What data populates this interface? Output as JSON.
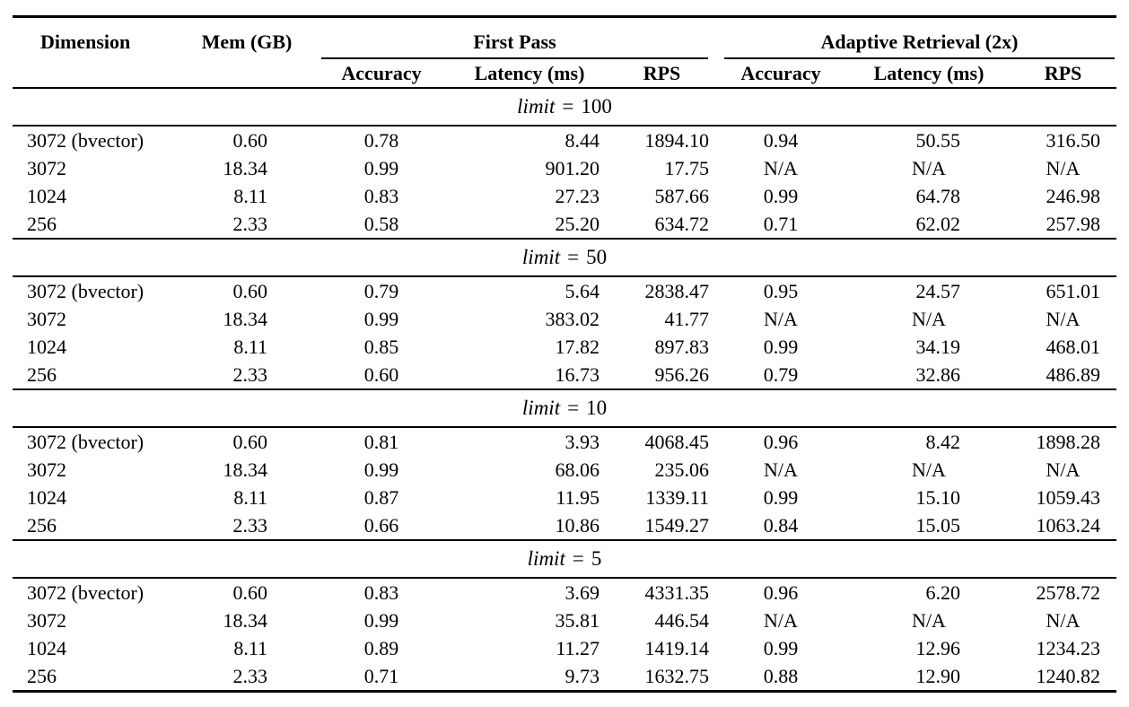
{
  "page": {
    "background_color": "#ffffff",
    "text_color": "#000000",
    "rule_color": "#000000"
  },
  "table": {
    "headers": {
      "dimension": "Dimension",
      "mem": "Mem (GB)",
      "group_first_pass": "First Pass",
      "group_adaptive": "Adaptive Retrieval (2x)",
      "accuracy": "Accuracy",
      "latency": "Latency (ms)",
      "rps": "RPS"
    },
    "limit_eq": "=",
    "sections": [
      {
        "limit_var": "limit",
        "limit_value": "100",
        "rows": [
          {
            "dimension": "3072 (bvector)",
            "mem": "0.60",
            "fp_accuracy": "0.78",
            "fp_latency": "8.44",
            "fp_rps": "1894.10",
            "ar_accuracy": "0.94",
            "ar_latency": "50.55",
            "ar_rps": "316.50"
          },
          {
            "dimension": "3072",
            "mem": "18.34",
            "fp_accuracy": "0.99",
            "fp_latency": "901.20",
            "fp_rps": "17.75",
            "ar_accuracy": "N/A",
            "ar_latency": "N/A",
            "ar_rps": "N/A"
          },
          {
            "dimension": "1024",
            "mem": "8.11",
            "fp_accuracy": "0.83",
            "fp_latency": "27.23",
            "fp_rps": "587.66",
            "ar_accuracy": "0.99",
            "ar_latency": "64.78",
            "ar_rps": "246.98"
          },
          {
            "dimension": "256",
            "mem": "2.33",
            "fp_accuracy": "0.58",
            "fp_latency": "25.20",
            "fp_rps": "634.72",
            "ar_accuracy": "0.71",
            "ar_latency": "62.02",
            "ar_rps": "257.98"
          }
        ]
      },
      {
        "limit_var": "limit",
        "limit_value": "50",
        "rows": [
          {
            "dimension": "3072 (bvector)",
            "mem": "0.60",
            "fp_accuracy": "0.79",
            "fp_latency": "5.64",
            "fp_rps": "2838.47",
            "ar_accuracy": "0.95",
            "ar_latency": "24.57",
            "ar_rps": "651.01"
          },
          {
            "dimension": "3072",
            "mem": "18.34",
            "fp_accuracy": "0.99",
            "fp_latency": "383.02",
            "fp_rps": "41.77",
            "ar_accuracy": "N/A",
            "ar_latency": "N/A",
            "ar_rps": "N/A"
          },
          {
            "dimension": "1024",
            "mem": "8.11",
            "fp_accuracy": "0.85",
            "fp_latency": "17.82",
            "fp_rps": "897.83",
            "ar_accuracy": "0.99",
            "ar_latency": "34.19",
            "ar_rps": "468.01"
          },
          {
            "dimension": "256",
            "mem": "2.33",
            "fp_accuracy": "0.60",
            "fp_latency": "16.73",
            "fp_rps": "956.26",
            "ar_accuracy": "0.79",
            "ar_latency": "32.86",
            "ar_rps": "486.89"
          }
        ]
      },
      {
        "limit_var": "limit",
        "limit_value": "10",
        "rows": [
          {
            "dimension": "3072 (bvector)",
            "mem": "0.60",
            "fp_accuracy": "0.81",
            "fp_latency": "3.93",
            "fp_rps": "4068.45",
            "ar_accuracy": "0.96",
            "ar_latency": "8.42",
            "ar_rps": "1898.28"
          },
          {
            "dimension": "3072",
            "mem": "18.34",
            "fp_accuracy": "0.99",
            "fp_latency": "68.06",
            "fp_rps": "235.06",
            "ar_accuracy": "N/A",
            "ar_latency": "N/A",
            "ar_rps": "N/A"
          },
          {
            "dimension": "1024",
            "mem": "8.11",
            "fp_accuracy": "0.87",
            "fp_latency": "11.95",
            "fp_rps": "1339.11",
            "ar_accuracy": "0.99",
            "ar_latency": "15.10",
            "ar_rps": "1059.43"
          },
          {
            "dimension": "256",
            "mem": "2.33",
            "fp_accuracy": "0.66",
            "fp_latency": "10.86",
            "fp_rps": "1549.27",
            "ar_accuracy": "0.84",
            "ar_latency": "15.05",
            "ar_rps": "1063.24"
          }
        ]
      },
      {
        "limit_var": "limit",
        "limit_value": "5",
        "rows": [
          {
            "dimension": "3072 (bvector)",
            "mem": "0.60",
            "fp_accuracy": "0.83",
            "fp_latency": "3.69",
            "fp_rps": "4331.35",
            "ar_accuracy": "0.96",
            "ar_latency": "6.20",
            "ar_rps": "2578.72"
          },
          {
            "dimension": "3072",
            "mem": "18.34",
            "fp_accuracy": "0.99",
            "fp_latency": "35.81",
            "fp_rps": "446.54",
            "ar_accuracy": "N/A",
            "ar_latency": "N/A",
            "ar_rps": "N/A"
          },
          {
            "dimension": "1024",
            "mem": "8.11",
            "fp_accuracy": "0.89",
            "fp_latency": "11.27",
            "fp_rps": "1419.14",
            "ar_accuracy": "0.99",
            "ar_latency": "12.96",
            "ar_rps": "1234.23"
          },
          {
            "dimension": "256",
            "mem": "2.33",
            "fp_accuracy": "0.71",
            "fp_latency": "9.73",
            "fp_rps": "1632.75",
            "ar_accuracy": "0.88",
            "ar_latency": "12.90",
            "ar_rps": "1240.82"
          }
        ]
      }
    ]
  }
}
